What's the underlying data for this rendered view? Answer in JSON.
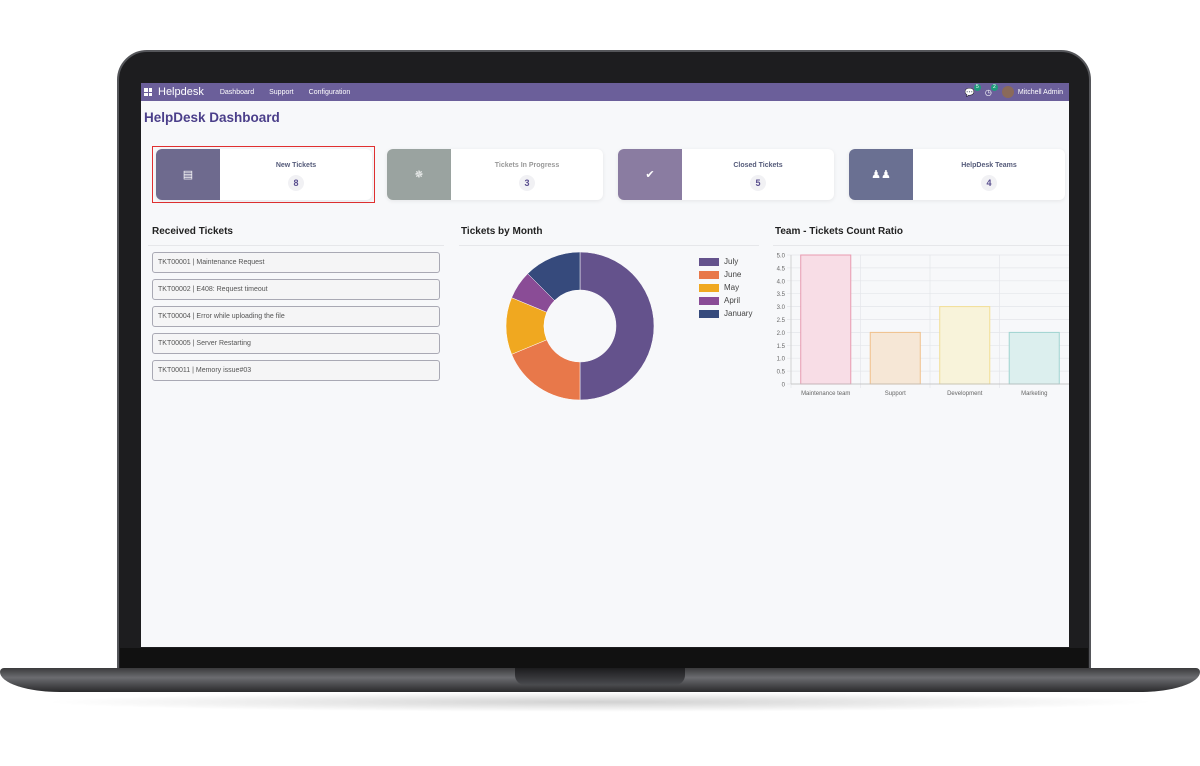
{
  "navbar": {
    "brand": "Helpdesk",
    "menu": [
      "Dashboard",
      "Support",
      "Configuration"
    ],
    "messages_badge": "5",
    "activity_badge": "2",
    "user": "Mitchell Admin",
    "color": "#6b5f9a"
  },
  "page_title": "HelpDesk Dashboard",
  "cards": [
    {
      "label": "New Tickets",
      "value": "8",
      "icon": "inbox-icon",
      "color": "#6e6a8e",
      "selected": true
    },
    {
      "label": "Tickets In Progress",
      "value": "3",
      "icon": "spinner-icon",
      "color": "#9aa3a0"
    },
    {
      "label": "Closed Tickets",
      "value": "5",
      "icon": "check-icon",
      "color": "#8a7ca1"
    },
    {
      "label": "HelpDesk Teams",
      "value": "4",
      "icon": "users-icon",
      "color": "#6a7092"
    }
  ],
  "received": {
    "title": "Received Tickets",
    "items": [
      "TKT00001 | Maintenance Request",
      "TKT00002 | E408: Request timeout",
      "TKT00004 | Error while uploading the file",
      "TKT00005 | Server Restarting",
      "TKT00011 | Memory issue#03"
    ]
  },
  "chart_data": [
    {
      "type": "pie",
      "title": "Tickets by Month",
      "donut": true,
      "legend": "right",
      "categories": [
        "July",
        "June",
        "May",
        "April",
        "January"
      ],
      "values": [
        8,
        3,
        2,
        1,
        2
      ],
      "colors": [
        "#64528c",
        "#e8784a",
        "#f0a820",
        "#8a4c96",
        "#364a7c"
      ]
    },
    {
      "type": "bar",
      "title": "Team - Tickets Count Ratio",
      "categories": [
        "Maintenance team",
        "Support",
        "Development",
        "Marketing"
      ],
      "values": [
        5,
        2,
        3,
        2
      ],
      "ylim": [
        0,
        5
      ],
      "yticks": [
        "0",
        "0.5",
        "1.0",
        "1.5",
        "2.0",
        "2.5",
        "3.0",
        "3.5",
        "4.0",
        "4.5",
        "5.0"
      ],
      "grid": true,
      "fill": [
        "#f8dde6",
        "#f6e7d6",
        "#f8f3da",
        "#dcefee"
      ],
      "stroke": [
        "#e89ab0",
        "#f0c08a",
        "#f2de94",
        "#9fd4d0"
      ]
    }
  ]
}
